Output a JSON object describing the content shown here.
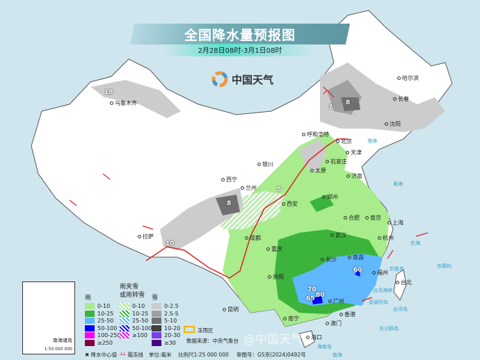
{
  "title": "全国降水量预报图",
  "subtitle": "2月28日08时-3月1日08时",
  "brand": "中国天气",
  "watermark": "@中国天气",
  "cities": [
    {
      "name": "乌鲁木齐"
    },
    {
      "name": "哈尔滨"
    },
    {
      "name": "长春"
    },
    {
      "name": "沈阳"
    },
    {
      "name": "呼和浩特"
    },
    {
      "name": "北京"
    },
    {
      "name": "天津"
    },
    {
      "name": "石家庄"
    },
    {
      "name": "太原"
    },
    {
      "name": "济南"
    },
    {
      "name": "银川"
    },
    {
      "name": "西宁"
    },
    {
      "name": "兰州"
    },
    {
      "name": "西安"
    },
    {
      "name": "郑州"
    },
    {
      "name": "合肥"
    },
    {
      "name": "南京"
    },
    {
      "name": "上海"
    },
    {
      "name": "成都"
    },
    {
      "name": "重庆"
    },
    {
      "name": "武汉"
    },
    {
      "name": "杭州"
    },
    {
      "name": "拉萨"
    },
    {
      "name": "长沙"
    },
    {
      "name": "南昌"
    },
    {
      "name": "福州"
    },
    {
      "name": "台北"
    },
    {
      "name": "贵阳"
    },
    {
      "name": "昆明"
    },
    {
      "name": "南宁"
    },
    {
      "name": "广州"
    },
    {
      "name": "香港"
    },
    {
      "name": "澳门"
    },
    {
      "name": "海口"
    }
  ],
  "precip_centers": [
    "18",
    "7",
    "8",
    "8",
    "5",
    "10",
    "60",
    "70",
    "65",
    "80"
  ],
  "seas": [
    "渤海",
    "黄海",
    "东海",
    "台湾海峡",
    "南海",
    "台湾岛",
    "钓鱼岛",
    "赤尾屿",
    "澎湖列岛",
    "东沙群岛",
    "海南岛"
  ],
  "legend": {
    "rain": {
      "title": "雨",
      "items": [
        {
          "label": "0-10",
          "color": "#a8ec8c"
        },
        {
          "label": "10-25",
          "color": "#3cb43c"
        },
        {
          "label": "25-50",
          "color": "#60b8ff"
        },
        {
          "label": "50-100",
          "color": "#0000fe"
        },
        {
          "label": "100-250",
          "color": "#fa00fa"
        },
        {
          "label": "≥250",
          "color": "#800040"
        }
      ]
    },
    "mixed": {
      "title": "雨夹雪\n或雨转雪",
      "items": [
        {
          "label": "0-10",
          "color": "#a8ec8c"
        },
        {
          "label": "10-25",
          "color": "#3cb43c"
        },
        {
          "label": "25-50",
          "color": "#60b8ff"
        },
        {
          "label": "50-100",
          "color": "#0000fe"
        },
        {
          "label": "≥100",
          "color": "#fa00fa"
        }
      ]
    },
    "snow": {
      "title": "雪",
      "items": [
        {
          "label": "0-2.5",
          "color": "#cccccc"
        },
        {
          "label": "2.5-5",
          "color": "#a0a0a0"
        },
        {
          "label": "5-10",
          "color": "#707070"
        },
        {
          "label": "10-20",
          "color": "#404040"
        },
        {
          "label": "20-30",
          "color": "#7b3fe8"
        },
        {
          "label": "≥30",
          "color": "#4b0082"
        }
      ]
    },
    "freezing_rain": "冻雨区",
    "center_marker": "降水中心值",
    "freezing_line": "霜冻线",
    "unit": "单位:毫米",
    "source": "数据来源：中央气象台",
    "scale": "比例尺1:25 000 000",
    "approval": "审图号：GS京(2024)0492号"
  },
  "inset": {
    "title": "南海诸岛",
    "scale": "1:50 000 000"
  }
}
